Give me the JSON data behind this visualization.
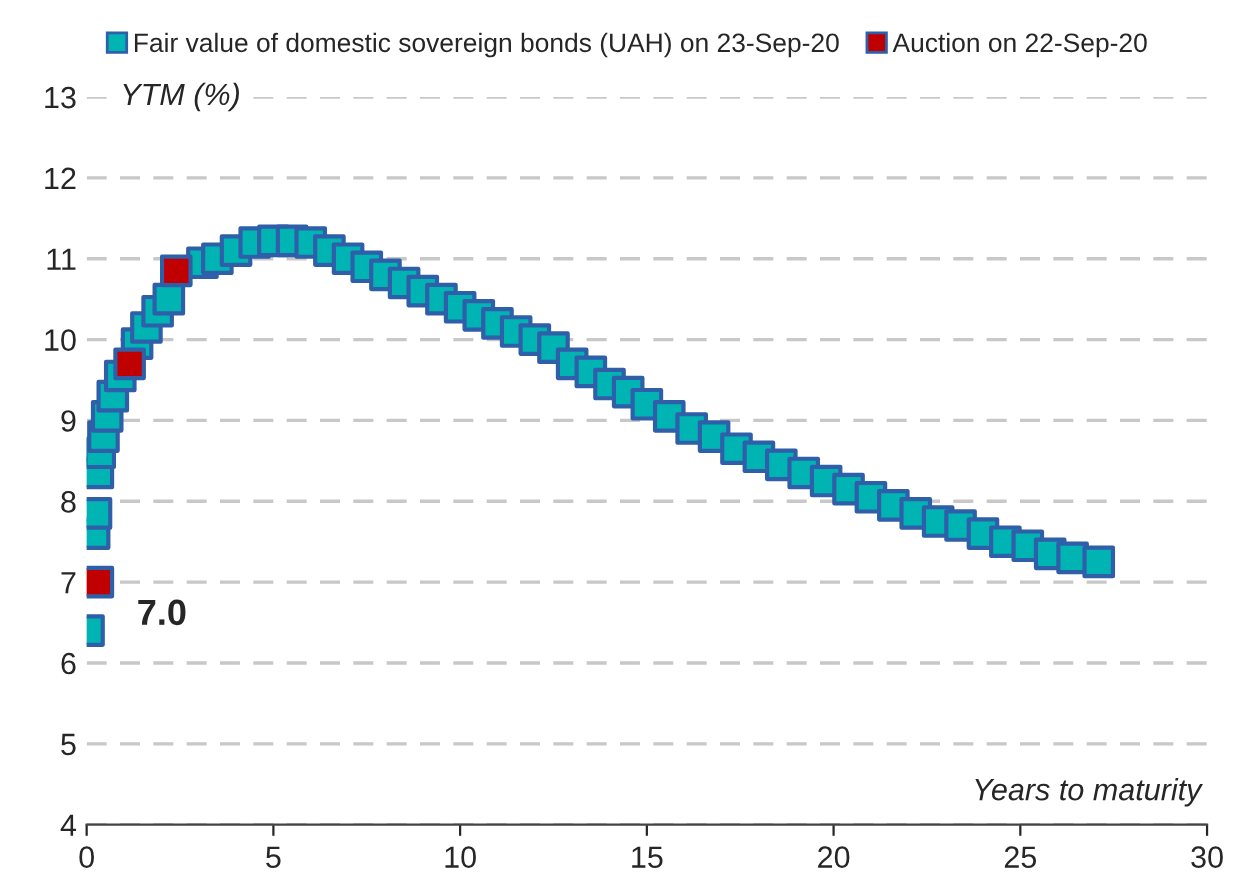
{
  "chart_data": {
    "type": "scatter",
    "xlabel": "Years to maturity",
    "ylabel": "YTM (%)",
    "xlim": [
      0,
      30
    ],
    "xticks": [
      0,
      5,
      10,
      15,
      20,
      25,
      30
    ],
    "ylim": [
      4,
      13
    ],
    "yticks": [
      4,
      5,
      6,
      7,
      8,
      9,
      10,
      11,
      12,
      13
    ],
    "grid": "y",
    "legend": "top",
    "marker": "square",
    "series": [
      {
        "name": "Fair value of domestic sovereign bonds (UAH) on 23-Sep-20",
        "color": "#00b4b4",
        "x": [
          0.05,
          0.2,
          0.25,
          0.3,
          0.35,
          0.45,
          0.55,
          0.7,
          0.9,
          1.1,
          1.35,
          1.6,
          1.9,
          2.2,
          2.6,
          3.1,
          3.5,
          4.0,
          4.5,
          5.0,
          5.5,
          6.0,
          6.5,
          7.0,
          7.5,
          8.0,
          8.5,
          9.0,
          9.5,
          10.0,
          10.5,
          11.0,
          11.5,
          12.0,
          12.5,
          13.0,
          13.5,
          14.0,
          14.5,
          15.0,
          15.6,
          16.2,
          16.8,
          17.4,
          18.0,
          18.6,
          19.2,
          19.8,
          20.4,
          21.0,
          21.6,
          22.2,
          22.8,
          23.4,
          24.0,
          24.6,
          25.2,
          25.8,
          26.4,
          27.1
        ],
        "values": [
          6.4,
          7.6,
          7.85,
          8.35,
          8.6,
          8.8,
          9.05,
          9.3,
          9.55,
          null,
          9.95,
          10.15,
          10.35,
          10.5,
          null,
          10.95,
          11.0,
          11.1,
          11.2,
          11.22,
          11.22,
          11.2,
          11.1,
          11.0,
          10.9,
          10.8,
          10.7,
          10.6,
          10.5,
          10.4,
          10.3,
          10.2,
          10.1,
          10.0,
          9.9,
          9.7,
          9.6,
          9.45,
          9.35,
          9.2,
          9.05,
          8.9,
          8.8,
          8.65,
          8.55,
          8.45,
          8.35,
          8.25,
          8.15,
          8.05,
          7.95,
          7.85,
          7.75,
          7.7,
          7.6,
          7.5,
          7.45,
          7.35,
          7.3,
          7.25
        ]
      },
      {
        "name": "Auction on 22-Sep-20",
        "color": "#c00000",
        "x": [
          0.3,
          1.15,
          2.4
        ],
        "values": [
          7.0,
          9.7,
          10.85
        ]
      }
    ],
    "annotations": [
      {
        "text": "7.0",
        "x": 0.3,
        "y": 7.0
      }
    ]
  }
}
